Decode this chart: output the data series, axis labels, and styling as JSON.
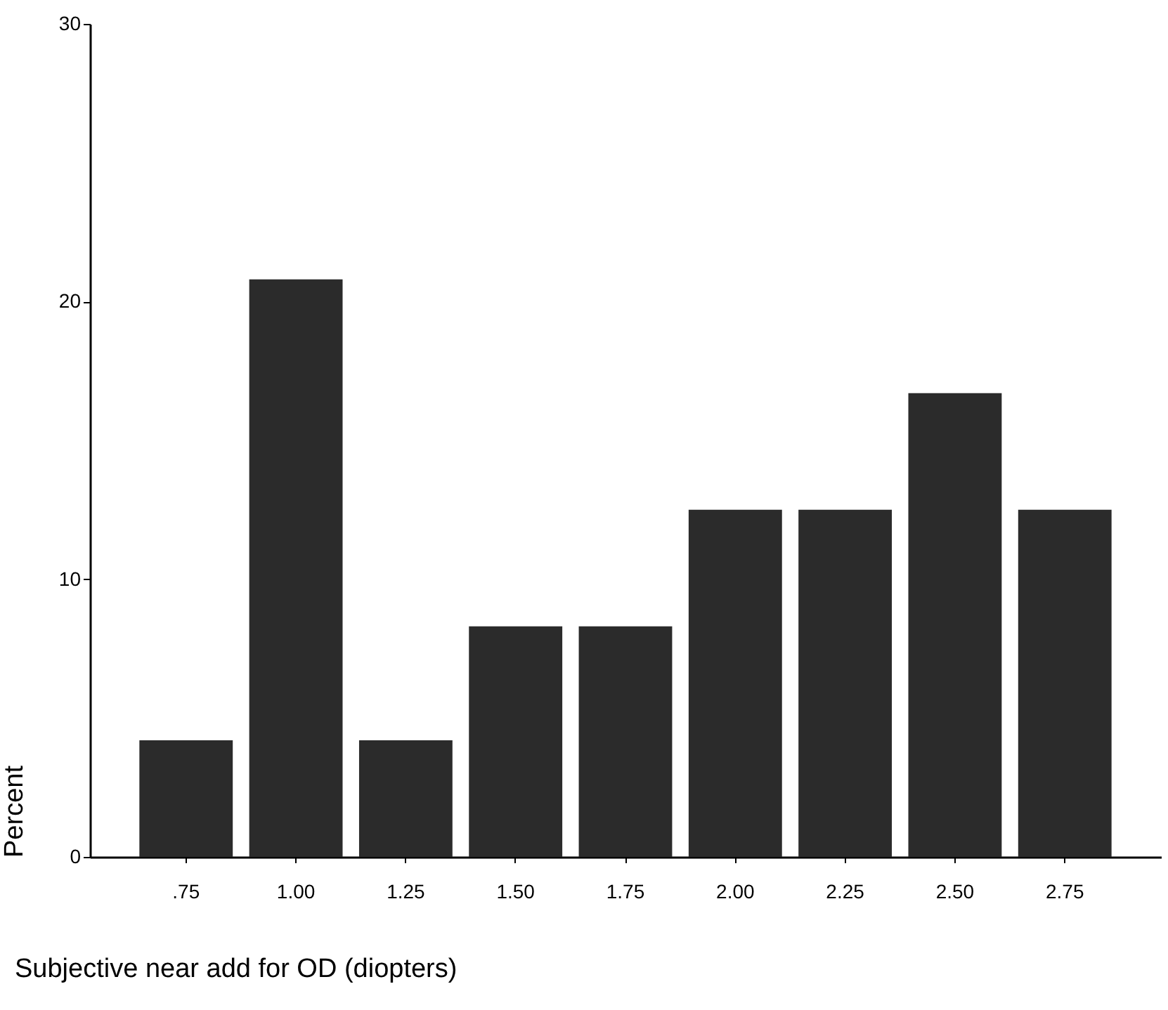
{
  "chart_data": {
    "type": "bar",
    "xlabel": "Subjective near add for OD (diopters)",
    "ylabel": "Percent",
    "categories": [
      ".75",
      "1.00",
      "1.25",
      "1.50",
      "1.75",
      "2.00",
      "2.25",
      "2.50",
      "2.75"
    ],
    "values": [
      4.2,
      20.8,
      4.2,
      8.3,
      8.3,
      12.5,
      12.5,
      16.7,
      12.5
    ],
    "color": "#2b2b2b",
    "ylim": [
      0,
      30
    ],
    "yticks": [
      0,
      10,
      20,
      30
    ],
    "grid": false
  }
}
